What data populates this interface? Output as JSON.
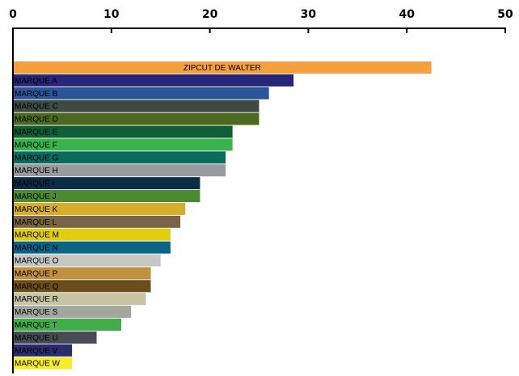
{
  "chart_data": {
    "type": "bar",
    "orientation": "horizontal",
    "title": "",
    "xlabel": "",
    "ylabel": "",
    "xlim": [
      0,
      50
    ],
    "xticks": [
      0,
      10,
      20,
      30,
      40,
      50
    ],
    "x_axis_position": "top",
    "grid": false,
    "legend": "none",
    "categories": [
      "ZIPCUT DE WALTER",
      "MARQUE A",
      "MARQUE B",
      "MARQUE C",
      "MARQUE D",
      "MARQUE E",
      "MARQUE F",
      "MARQUE G",
      "MARQUE H",
      "MARQUE I",
      "MARQUE J",
      "MARQUE K",
      "MARQUE L",
      "MARQUE M",
      "MARQUE N",
      "MARQUE O",
      "MARQUE P",
      "MARQUE Q",
      "MARQUE R",
      "MARQUE S",
      "MARQUE T",
      "MARQUE U",
      "MARQUE V",
      "MARQUE W"
    ],
    "values": [
      42.5,
      28.5,
      26,
      25,
      25,
      22.3,
      22.3,
      21.6,
      21.6,
      19,
      19,
      17.5,
      17,
      16,
      16,
      15,
      14,
      14,
      13.5,
      12,
      11,
      8.5,
      6,
      6
    ],
    "colors": [
      "#f4a03c",
      "#27267a",
      "#2b5499",
      "#3f4a45",
      "#4c6a1f",
      "#0f5e36",
      "#38b44a",
      "#0c6a5e",
      "#9a9b9e",
      "#0c2b45",
      "#4b8a30",
      "#d4ad2b",
      "#7b6446",
      "#e2cd0e",
      "#0a6487",
      "#c6c7c3",
      "#c19142",
      "#6a4f1c",
      "#c7c4a4",
      "#a3a69f",
      "#41ac49",
      "#474b53",
      "#2c2b6e",
      "#f7ed2a"
    ],
    "label_colors": [
      "#000000",
      "#000000",
      "#000000",
      "#000000",
      "#000000",
      "#000000",
      "#000000",
      "#000000",
      "#000000",
      "#000000",
      "#000000",
      "#000000",
      "#000000",
      "#000000",
      "#000000",
      "#000000",
      "#000000",
      "#000000",
      "#000000",
      "#000000",
      "#000000",
      "#000000",
      "#000000",
      "#000000"
    ],
    "label_position": [
      "center",
      "inside-left",
      "inside-left",
      "inside-left",
      "inside-left",
      "inside-left",
      "inside-left",
      "inside-left",
      "inside-left",
      "inside-left",
      "inside-left",
      "inside-left",
      "inside-left",
      "inside-left",
      "inside-left",
      "inside-left",
      "inside-left",
      "inside-left",
      "inside-left",
      "inside-left",
      "inside-left",
      "inside-left",
      "inside-left",
      "inside-left"
    ]
  }
}
